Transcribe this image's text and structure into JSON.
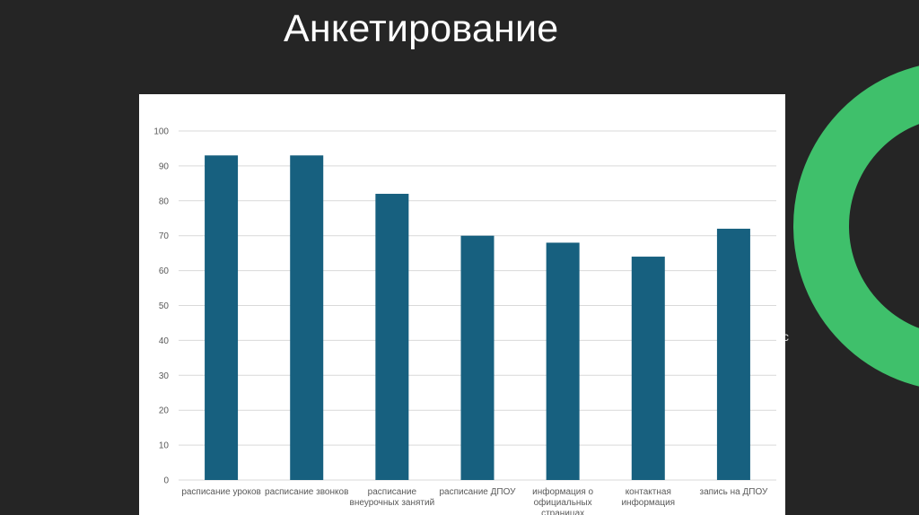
{
  "slide": {
    "title": "Анкетирование",
    "stray_text": "с",
    "background_color": "#252525",
    "accent_color": "#3fc06b"
  },
  "chart_data": {
    "type": "bar",
    "categories": [
      "расписание уроков",
      "расписание звонков",
      "расписание внеурочных занятий",
      "расписание ДПОУ",
      "информация о официальных страницах",
      "контактная информация",
      "запись на ДПОУ"
    ],
    "category_lines": [
      [
        "расписание уроков"
      ],
      [
        "расписание звонков"
      ],
      [
        "расписание",
        "внеурочных занятий"
      ],
      [
        "расписание ДПОУ"
      ],
      [
        "информация о",
        "официальных",
        "страницах"
      ],
      [
        "контактная",
        "информация"
      ],
      [
        "запись на ДПОУ"
      ]
    ],
    "values": [
      93,
      93,
      82,
      70,
      68,
      64,
      72
    ],
    "yticks": [
      0,
      10,
      20,
      30,
      40,
      50,
      60,
      70,
      80,
      90,
      100
    ],
    "ylim": [
      0,
      100
    ],
    "title": "",
    "xlabel": "",
    "ylabel": "",
    "grid": true,
    "legend": "none",
    "bar_color": "#17607f",
    "grid_color": "#d9d9d9"
  }
}
